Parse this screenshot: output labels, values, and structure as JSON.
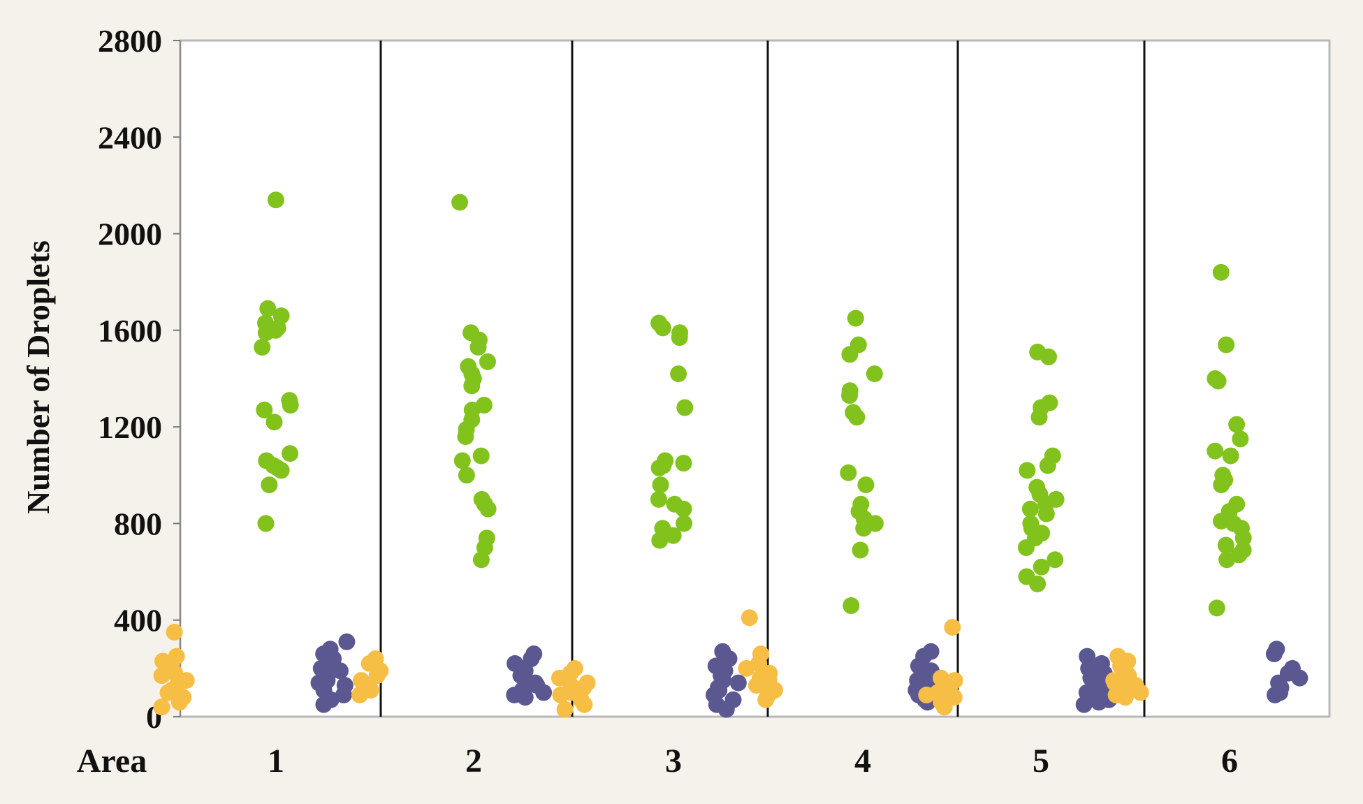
{
  "chart_data": {
    "type": "scatter",
    "title": "",
    "ylabel": "Number of Droplets",
    "xlabel": "Area",
    "ylim": [
      0,
      2800
    ],
    "yticks": [
      0,
      400,
      800,
      1200,
      1600,
      2000,
      2400,
      2800
    ],
    "categories": [
      "1",
      "2",
      "3",
      "4",
      "5",
      "6"
    ],
    "colors": {
      "left": "#f7be45",
      "middle": "#82c21d",
      "right": "#5b5891",
      "plot_bg": "#ffffff",
      "divider": "#111111"
    },
    "groups": [
      {
        "area": "1",
        "left": [
          350,
          250,
          230,
          200,
          190,
          180,
          170,
          150,
          130,
          110,
          100,
          80,
          60,
          40
        ],
        "middle": [
          2140,
          1690,
          1660,
          1630,
          1610,
          1600,
          1590,
          1530,
          1310,
          1290,
          1270,
          1220,
          1090,
          1060,
          1040,
          1030,
          1020,
          960,
          800
        ],
        "right": [
          310,
          280,
          260,
          240,
          220,
          200,
          190,
          170,
          150,
          140,
          130,
          110,
          90,
          70,
          50
        ]
      },
      {
        "area": "2",
        "left": [
          240,
          220,
          190,
          170,
          150,
          130,
          110,
          90
        ],
        "middle": [
          2130,
          1590,
          1560,
          1530,
          1470,
          1450,
          1420,
          1400,
          1370,
          1290,
          1270,
          1230,
          1190,
          1160,
          1080,
          1060,
          1000,
          900,
          880,
          860,
          740,
          700,
          650
        ],
        "right": [
          260,
          240,
          220,
          200,
          190,
          170,
          150,
          140,
          130,
          110,
          100,
          90,
          80
        ]
      },
      {
        "area": "3",
        "left": [
          200,
          180,
          160,
          140,
          130,
          120,
          110,
          100,
          90,
          70,
          50,
          30
        ],
        "middle": [
          1630,
          1610,
          1590,
          1570,
          1420,
          1280,
          1060,
          1050,
          1040,
          1030,
          960,
          900,
          880,
          860,
          800,
          780,
          750,
          730
        ],
        "right": [
          270,
          240,
          210,
          190,
          170,
          150,
          140,
          120,
          110,
          90,
          70,
          50,
          30
        ]
      },
      {
        "area": "4",
        "left": [
          410,
          260,
          220,
          200,
          180,
          160,
          150,
          130,
          110,
          90,
          70
        ],
        "middle": [
          1650,
          1540,
          1500,
          1420,
          1350,
          1330,
          1260,
          1240,
          1010,
          960,
          880,
          850,
          820,
          800,
          780,
          690,
          460
        ],
        "right": [
          270,
          250,
          210,
          190,
          170,
          150,
          140,
          130,
          110,
          90,
          70,
          60
        ]
      },
      {
        "area": "5",
        "left": [
          370,
          160,
          150,
          130,
          110,
          100,
          90,
          80,
          60,
          40
        ],
        "middle": [
          1510,
          1490,
          1300,
          1280,
          1240,
          1080,
          1040,
          1020,
          950,
          920,
          900,
          880,
          860,
          840,
          800,
          780,
          760,
          740,
          700,
          650,
          620,
          580,
          550
        ],
        "right": [
          250,
          220,
          200,
          180,
          160,
          150,
          140,
          130,
          120,
          100,
          90,
          80,
          70,
          60,
          50
        ]
      },
      {
        "area": "6",
        "left": [
          250,
          230,
          210,
          190,
          170,
          160,
          150,
          140,
          130,
          120,
          110,
          100,
          90,
          80
        ],
        "middle": [
          1840,
          1540,
          1400,
          1390,
          1210,
          1150,
          1100,
          1080,
          1000,
          980,
          960,
          880,
          850,
          810,
          800,
          780,
          740,
          710,
          690,
          670,
          650,
          450
        ],
        "right": [
          280,
          260,
          200,
          180,
          160,
          140,
          120,
          100,
          90
        ]
      }
    ]
  }
}
